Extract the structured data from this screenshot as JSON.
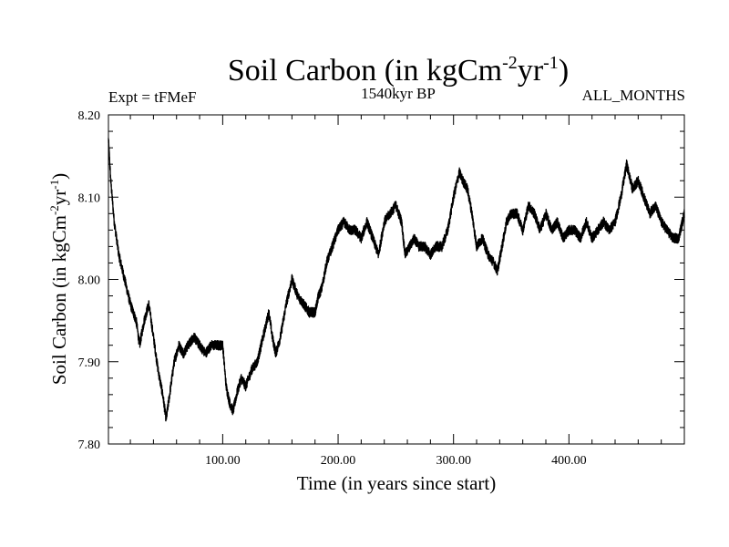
{
  "header": {
    "title_main": "Soil Carbon (in kgCm",
    "title_sup1": "-2",
    "title_mid": "yr",
    "title_sup2": "-1",
    "title_end": ")",
    "expt": "Expt = tFMeF",
    "period": "1540kyr BP",
    "months": "ALL_MONTHS"
  },
  "axes": {
    "xlabel": "Time (in years since start)",
    "ylabel_main": "Soil Carbon (in kgCm",
    "ylabel_sup1": "-2",
    "ylabel_mid": "yr",
    "ylabel_sup2": "-1",
    "ylabel_end": ")"
  },
  "chart_data": {
    "type": "line",
    "title": "Soil Carbon (in kgCm-2yr-1)",
    "xlabel": "Time (in years since start)",
    "ylabel": "Soil Carbon (in kgCm-2yr-1)",
    "xlim": [
      1,
      500
    ],
    "ylim": [
      7.8,
      8.2
    ],
    "x_ticks": [
      100,
      200,
      300,
      400
    ],
    "x_tick_labels": [
      "100.00",
      "200.00",
      "300.00",
      "400.00"
    ],
    "y_ticks": [
      7.8,
      7.9,
      8.0,
      8.1,
      8.2
    ],
    "y_tick_labels": [
      "7.80",
      "7.90",
      "8.00",
      "8.10",
      "8.20"
    ],
    "series": [
      {
        "name": "Soil Carbon",
        "color": "#000000",
        "noise_amplitude": 0.006,
        "x": [
          1,
          3,
          6,
          10,
          15,
          20,
          25,
          28,
          32,
          36,
          40,
          44,
          48,
          51,
          54,
          58,
          62,
          66,
          70,
          75,
          80,
          85,
          90,
          95,
          100,
          103,
          106,
          109,
          112,
          116,
          120,
          125,
          130,
          135,
          140,
          143,
          146,
          150,
          155,
          160,
          165,
          170,
          175,
          180,
          183,
          186,
          190,
          195,
          200,
          205,
          210,
          215,
          220,
          225,
          230,
          235,
          240,
          245,
          250,
          255,
          258,
          262,
          266,
          270,
          275,
          280,
          285,
          290,
          295,
          300,
          305,
          308,
          312,
          316,
          320,
          325,
          330,
          335,
          338,
          342,
          346,
          350,
          355,
          360,
          365,
          370,
          375,
          380,
          385,
          390,
          395,
          400,
          405,
          410,
          415,
          420,
          425,
          430,
          435,
          440,
          445,
          450,
          455,
          460,
          465,
          470,
          475,
          480,
          485,
          490,
          495,
          500
        ],
        "y": [
          8.17,
          8.12,
          8.07,
          8.03,
          8.0,
          7.97,
          7.95,
          7.92,
          7.95,
          7.97,
          7.93,
          7.89,
          7.86,
          7.83,
          7.86,
          7.9,
          7.92,
          7.91,
          7.92,
          7.93,
          7.92,
          7.91,
          7.92,
          7.92,
          7.92,
          7.87,
          7.85,
          7.84,
          7.86,
          7.88,
          7.87,
          7.89,
          7.9,
          7.93,
          7.96,
          7.93,
          7.91,
          7.93,
          7.97,
          8.0,
          7.98,
          7.97,
          7.96,
          7.96,
          7.98,
          7.99,
          8.02,
          8.04,
          8.06,
          8.07,
          8.06,
          8.06,
          8.05,
          8.07,
          8.05,
          8.03,
          8.07,
          8.08,
          8.09,
          8.07,
          8.03,
          8.04,
          8.05,
          8.04,
          8.04,
          8.03,
          8.04,
          8.04,
          8.06,
          8.1,
          8.13,
          8.12,
          8.11,
          8.08,
          8.04,
          8.05,
          8.03,
          8.02,
          8.01,
          8.04,
          8.07,
          8.08,
          8.08,
          8.06,
          8.09,
          8.08,
          8.06,
          8.08,
          8.06,
          8.07,
          8.05,
          8.06,
          8.06,
          8.05,
          8.07,
          8.05,
          8.06,
          8.07,
          8.06,
          8.07,
          8.1,
          8.14,
          8.11,
          8.12,
          8.1,
          8.08,
          8.09,
          8.07,
          8.06,
          8.05,
          8.05,
          8.08
        ]
      }
    ]
  }
}
